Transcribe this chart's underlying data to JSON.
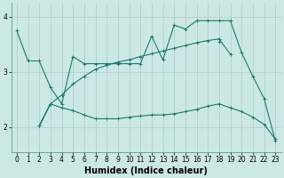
{
  "bg_color": "#cce8e4",
  "grid_color": "#aaccca",
  "line_color": "#1a7a6e",
  "xlabel": "Humidex (Indice chaleur)",
  "xlabel_fontsize": 7,
  "tick_fontsize": 5.5,
  "xlim": [
    -0.5,
    23.5
  ],
  "ylim": [
    1.55,
    4.25
  ],
  "yticks": [
    2,
    3,
    4
  ],
  "xticks": [
    0,
    1,
    2,
    3,
    4,
    5,
    6,
    7,
    8,
    9,
    10,
    11,
    12,
    13,
    14,
    15,
    16,
    17,
    18,
    19,
    20,
    21,
    22,
    23
  ],
  "series": [
    [
      3.75,
      3.2,
      3.2,
      2.72,
      2.42,
      3.28,
      3.15,
      3.15,
      3.15,
      3.15,
      3.15,
      3.15,
      3.65,
      3.22,
      3.85,
      3.78,
      3.93,
      3.93,
      3.93,
      3.93,
      3.35,
      2.92,
      2.52,
      1.75
    ],
    [
      null,
      null,
      2.02,
      2.42,
      null,
      null,
      null,
      null,
      null,
      null,
      null,
      null,
      null,
      null,
      null,
      null,
      null,
      null,
      3.55,
      null,
      null,
      null,
      null,
      null
    ],
    [
      null,
      null,
      2.02,
      2.42,
      2.35,
      2.3,
      2.22,
      2.15,
      2.15,
      2.15,
      2.18,
      2.2,
      2.22,
      2.22,
      2.24,
      2.28,
      2.32,
      2.38,
      2.42,
      null,
      null,
      null,
      null,
      null
    ],
    [
      null,
      null,
      2.02,
      2.42,
      2.58,
      2.78,
      2.92,
      3.05,
      3.12,
      3.18,
      3.22,
      3.28,
      3.33,
      3.38,
      3.43,
      3.48,
      3.53,
      3.57,
      3.6,
      null,
      null,
      null,
      null,
      null
    ],
    [
      null,
      null,
      null,
      null,
      null,
      null,
      null,
      null,
      null,
      null,
      null,
      null,
      null,
      null,
      null,
      null,
      null,
      null,
      2.42,
      2.35,
      2.28,
      2.18,
      2.05,
      1.78
    ],
    [
      null,
      null,
      null,
      null,
      null,
      null,
      null,
      null,
      null,
      null,
      null,
      null,
      null,
      null,
      null,
      null,
      null,
      null,
      3.6,
      3.32,
      null,
      null,
      null,
      null
    ]
  ]
}
